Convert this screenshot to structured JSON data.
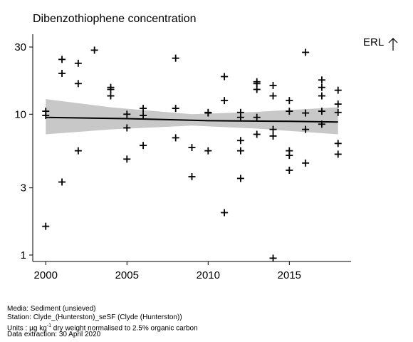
{
  "chart_data": {
    "type": "scatter",
    "title": "Dibenzothiophene concentration",
    "y_scale": "log",
    "xlim": [
      1999.2,
      2018.8
    ],
    "ylim": [
      0.9,
      37
    ],
    "x_ticks": [
      2000,
      2005,
      2010,
      2015
    ],
    "x_tick_labels": [
      "2000",
      "2005",
      "2010",
      "2015"
    ],
    "y_ticks": [
      1,
      3,
      10,
      30
    ],
    "y_tick_labels": [
      "1",
      "3",
      "10",
      "30"
    ],
    "grid": false,
    "marker": "plus",
    "points": [
      [
        2000,
        10.5
      ],
      [
        2000,
        9.8
      ],
      [
        2000,
        1.6
      ],
      [
        2001,
        24.5
      ],
      [
        2001,
        19.5
      ],
      [
        2001,
        3.3
      ],
      [
        2002,
        23
      ],
      [
        2002,
        16.5
      ],
      [
        2002,
        5.5
      ],
      [
        2003,
        28.5
      ],
      [
        2004,
        15.5
      ],
      [
        2004,
        15
      ],
      [
        2004,
        13.5
      ],
      [
        2005,
        10
      ],
      [
        2005,
        8
      ],
      [
        2005,
        4.8
      ],
      [
        2006,
        11
      ],
      [
        2006,
        9.8
      ],
      [
        2006,
        6
      ],
      [
        2008,
        25
      ],
      [
        2008,
        11
      ],
      [
        2008,
        6.8
      ],
      [
        2009,
        5.8
      ],
      [
        2009,
        3.6
      ],
      [
        2010,
        10.3
      ],
      [
        2010,
        10.2
      ],
      [
        2010,
        5.5
      ],
      [
        2011,
        18.5
      ],
      [
        2011,
        12.5
      ],
      [
        2011,
        2
      ],
      [
        2012,
        10.3
      ],
      [
        2012,
        9.5
      ],
      [
        2012,
        6.5
      ],
      [
        2012,
        5.5
      ],
      [
        2012,
        3.5
      ],
      [
        2013,
        17
      ],
      [
        2013,
        16.5
      ],
      [
        2013,
        15
      ],
      [
        2013,
        9.5
      ],
      [
        2013,
        7.2
      ],
      [
        2014,
        16
      ],
      [
        2014,
        13.5
      ],
      [
        2014,
        7.8
      ],
      [
        2014,
        7
      ],
      [
        2014,
        0.95
      ],
      [
        2015,
        12.5
      ],
      [
        2015,
        10.5
      ],
      [
        2015,
        5.5
      ],
      [
        2015,
        5.1
      ],
      [
        2015,
        4
      ],
      [
        2016,
        27.5
      ],
      [
        2016,
        10.2
      ],
      [
        2016,
        7.8
      ],
      [
        2016,
        4.5
      ],
      [
        2017,
        17.5
      ],
      [
        2017,
        15.5
      ],
      [
        2017,
        13.5
      ],
      [
        2017,
        10.5
      ],
      [
        2017,
        8.5
      ],
      [
        2018,
        14.8
      ],
      [
        2018,
        11.8
      ],
      [
        2018,
        10.3
      ],
      [
        2018,
        6.2
      ],
      [
        2018,
        5.2
      ]
    ],
    "trend": [
      [
        2000,
        9.5
      ],
      [
        2005,
        9.3
      ],
      [
        2010,
        9.0
      ],
      [
        2015,
        8.9
      ],
      [
        2018,
        8.8
      ]
    ],
    "band": [
      [
        2000,
        7.2,
        12.8
      ],
      [
        2004,
        7.8,
        11.2
      ],
      [
        2009,
        8.3,
        10.0
      ],
      [
        2013,
        7.9,
        10.4
      ],
      [
        2018,
        7.2,
        11.2
      ]
    ],
    "colors": {
      "points": "#000000",
      "trend": "#000000",
      "band": "#c8c8c8",
      "axis": "#000000"
    },
    "annotation": {
      "label": "ERL",
      "arrow": "up-arrow-icon"
    }
  },
  "footer": {
    "media": "Media: Sediment (unsieved)",
    "station": "Station: Clyde_(Hunterston)_seSF (Clyde (Hunterston))",
    "units_prefix": "Units : µg kg",
    "units_exp": "-1",
    "units_suffix": " dry weight normalised to 2.5% organic carbon",
    "extraction": "Data extraction: 30 April 2020"
  }
}
